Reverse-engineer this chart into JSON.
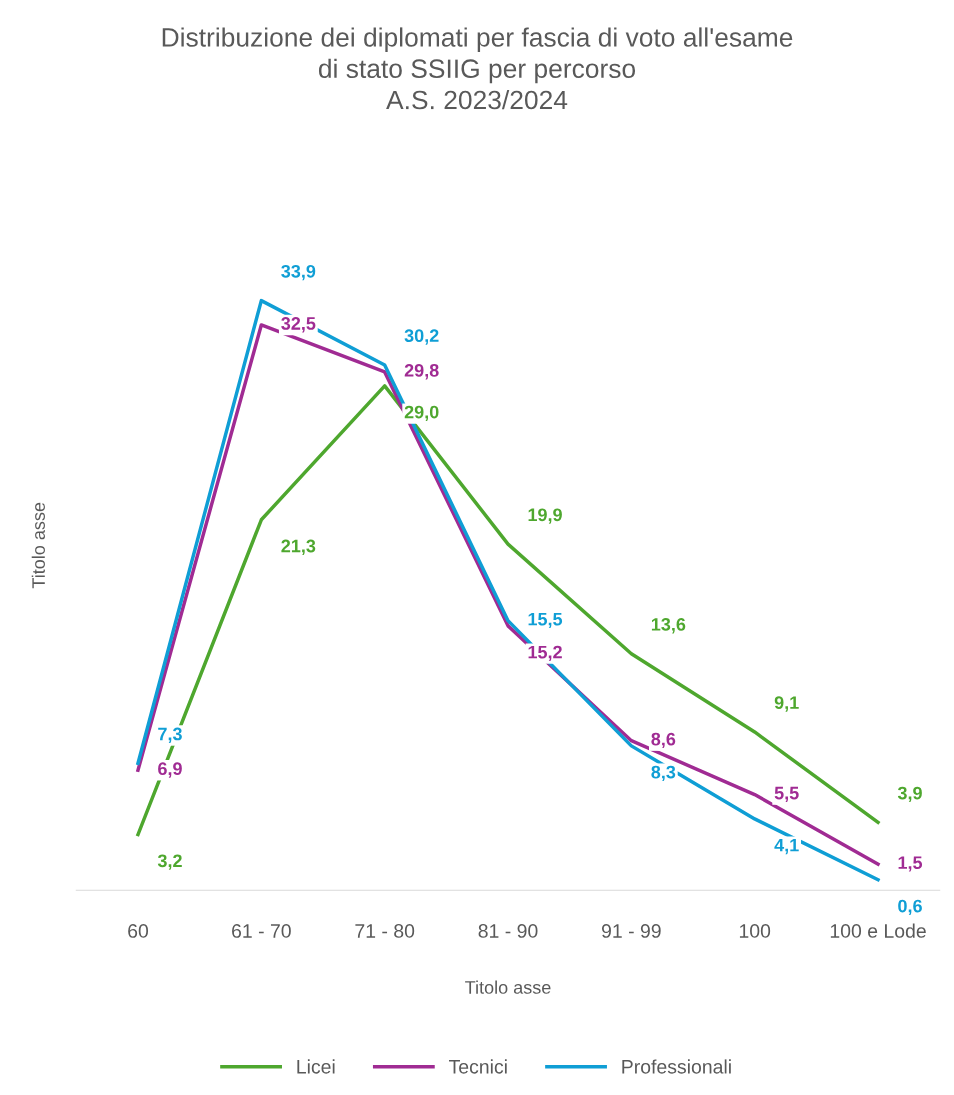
{
  "chart_data": {
    "type": "line",
    "title": "Distribuzione dei diplomati per fascia di voto all'esame\ndi stato SSIIG per percorso\nA.S. 2023/2024",
    "xlabel": "Titolo asse",
    "ylabel": "Titolo asse",
    "categories": [
      "60",
      "61 - 70",
      "71 - 80",
      "81 - 90",
      "91 - 99",
      "100",
      "100 e Lode"
    ],
    "series": [
      {
        "name": "Licei",
        "color": "#4ea72e",
        "values": [
          3.2,
          21.3,
          29.0,
          19.9,
          13.6,
          9.1,
          3.9
        ],
        "value_labels": [
          "3,2",
          "21,3",
          "29,0",
          "19,9",
          "13,6",
          "9,1",
          "3,9"
        ]
      },
      {
        "name": "Tecnici",
        "color": "#a02b93",
        "values": [
          6.9,
          32.5,
          29.8,
          15.2,
          8.6,
          5.5,
          1.5
        ],
        "value_labels": [
          "6,9",
          "32,5",
          "29,8",
          "15,2",
          "8,6",
          "5,5",
          "1,5"
        ]
      },
      {
        "name": "Professionali",
        "color": "#0f9ed5",
        "values": [
          7.3,
          33.9,
          30.2,
          15.5,
          8.3,
          4.1,
          0.6
        ],
        "value_labels": [
          "7,3",
          "33,9",
          "30,2",
          "15,5",
          "8,3",
          "4,1",
          "0,6"
        ]
      }
    ],
    "legend": "bottom",
    "grid": false,
    "marker": "none",
    "line_style": "solid"
  }
}
